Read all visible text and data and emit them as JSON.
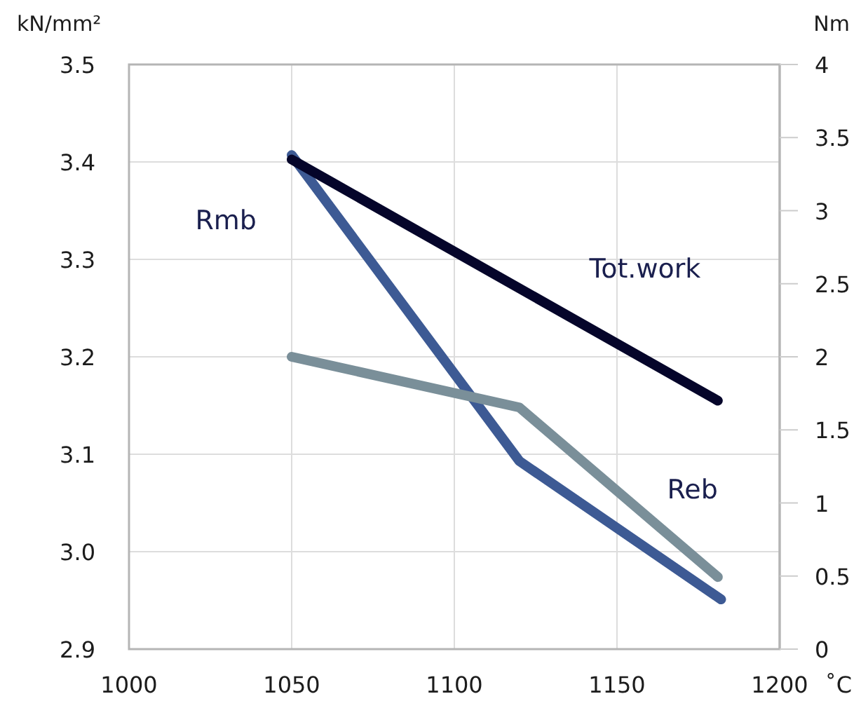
{
  "chart_data": {
    "type": "line",
    "xlabel": "˚C",
    "ylabel": "kN/mm²",
    "y2label": "Nm",
    "xlim": [
      1000,
      1200
    ],
    "xticks": [
      1000,
      1050,
      1100,
      1150,
      1200
    ],
    "ylim": [
      2.9,
      3.5
    ],
    "yticks": [
      {
        "value": 2.9,
        "label": "2.9"
      },
      {
        "value": 3.0,
        "label": "3.0"
      },
      {
        "value": 3.1,
        "label": "3.1"
      },
      {
        "value": 3.2,
        "label": "3.2"
      },
      {
        "value": 3.3,
        "label": "3.3"
      },
      {
        "value": 3.4,
        "label": "3.4"
      },
      {
        "value": 3.5,
        "label": "3.5"
      }
    ],
    "y2lim": [
      0,
      4
    ],
    "y2ticks": [
      0,
      0.5,
      1,
      1.5,
      2,
      2.5,
      3,
      3.5,
      4
    ],
    "grid": true,
    "legend": false,
    "marker": "none",
    "line_style": "solid",
    "series": [
      {
        "name": "Rmb",
        "color": "#3d5a94",
        "x": [
          1050,
          1120,
          1182
        ],
        "values": [
          3.407,
          3.093,
          2.951
        ]
      },
      {
        "name": "Tot.work",
        "color": "#05052a",
        "axis": "y2",
        "x": [
          1050,
          1181
        ],
        "values": [
          3.35,
          1.7
        ]
      },
      {
        "name": "Reb",
        "color": "#7a8f99",
        "x": [
          1050,
          1120,
          1181
        ],
        "values": [
          3.2,
          3.148,
          2.974
        ]
      }
    ]
  }
}
